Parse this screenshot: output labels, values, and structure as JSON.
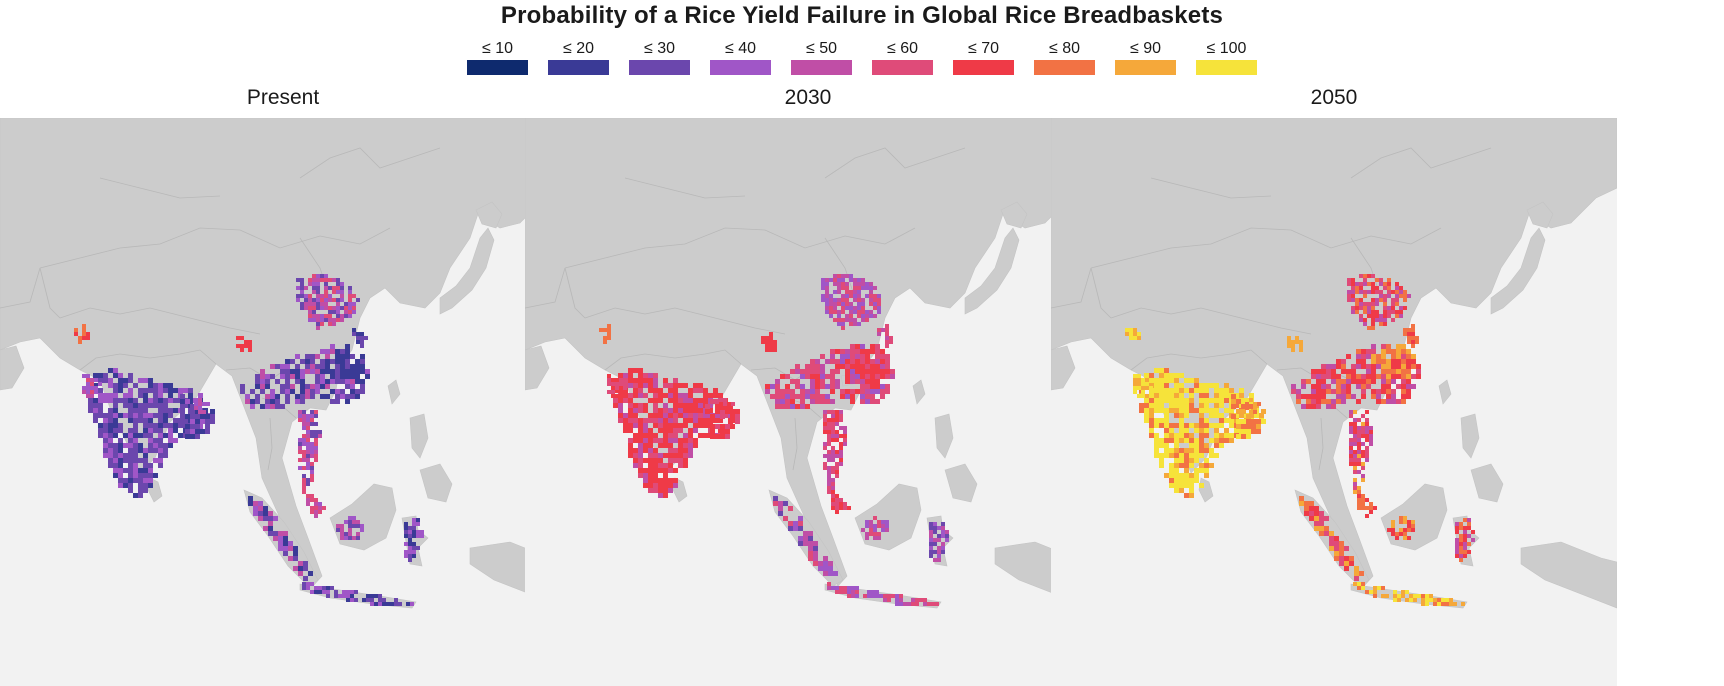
{
  "title": "Probability of a Rice Yield Failure in Global Rice Breadbaskets",
  "legend": [
    {
      "label": "≤ 10",
      "color": "#0e2a6e"
    },
    {
      "label": "≤ 20",
      "color": "#3a3a96"
    },
    {
      "label": "≤ 30",
      "color": "#6b47ad"
    },
    {
      "label": "≤ 40",
      "color": "#a056c7"
    },
    {
      "label": "≤ 50",
      "color": "#c04ea6"
    },
    {
      "label": "≤ 60",
      "color": "#df4b79"
    },
    {
      "label": "≤ 70",
      "color": "#ef3a47"
    },
    {
      "label": "≤ 80",
      "color": "#f27244"
    },
    {
      "label": "≤ 90",
      "color": "#f5a83a"
    },
    {
      "label": "≤ 100",
      "color": "#f6e33a"
    }
  ],
  "panels": [
    {
      "title": "Present"
    },
    {
      "title": "2030"
    },
    {
      "title": "2050"
    }
  ],
  "colors": {
    "land": "#cccccc",
    "sea": "#f2f2f2",
    "border": "#b8b8b8"
  }
}
